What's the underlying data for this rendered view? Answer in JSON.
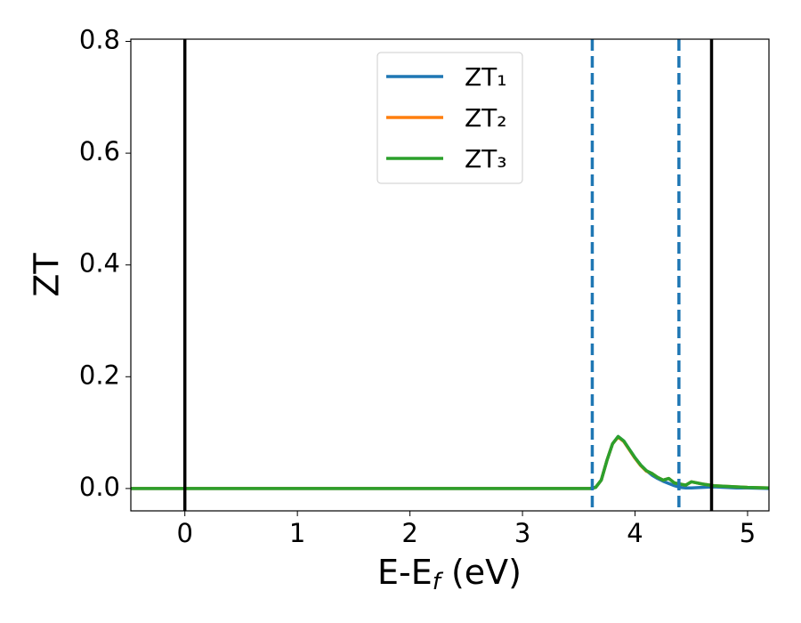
{
  "chart_data": {
    "type": "line",
    "xlabel": [
      "E-E",
      "f",
      " (eV)"
    ],
    "ylabel": "ZT",
    "x": [
      -0.5,
      0,
      0.5,
      1,
      1.5,
      2,
      2.5,
      3,
      3.5,
      3.6,
      3.65,
      3.7,
      3.75,
      3.8,
      3.85,
      3.9,
      3.95,
      4.0,
      4.05,
      4.1,
      4.15,
      4.2,
      4.25,
      4.3,
      4.35,
      4.4,
      4.45,
      4.5,
      4.6,
      4.7,
      4.8,
      4.9,
      5.0,
      5.2
    ],
    "series": [
      {
        "name": "ZT₁",
        "color": "#1f77b4",
        "values": [
          0,
          0,
          0,
          0,
          0,
          0,
          0,
          0,
          0,
          0,
          0.002,
          0.015,
          0.05,
          0.08,
          0.093,
          0.085,
          0.07,
          0.055,
          0.042,
          0.032,
          0.024,
          0.018,
          0.013,
          0.009,
          0.005,
          0.002,
          0.001,
          0.001,
          0.002,
          0.003,
          0.002,
          0.001,
          0.001,
          0
        ]
      },
      {
        "name": "ZT₂",
        "color": "#ff7f0e",
        "values": [
          0,
          0,
          0,
          0,
          0,
          0,
          0,
          0,
          0,
          0,
          0.002,
          0.015,
          0.05,
          0.08,
          0.092,
          0.084,
          0.069,
          0.054,
          0.041,
          0.031,
          0.027,
          0.02,
          0.015,
          0.018,
          0.01,
          0.008,
          0.006,
          0.012,
          0.008,
          0.005,
          0.004,
          0.003,
          0.002,
          0.001
        ]
      },
      {
        "name": "ZT₃",
        "color": "#2ca02c",
        "values": [
          0,
          0,
          0,
          0,
          0,
          0,
          0,
          0,
          0,
          0,
          0.002,
          0.015,
          0.05,
          0.08,
          0.093,
          0.085,
          0.07,
          0.055,
          0.042,
          0.032,
          0.027,
          0.02,
          0.015,
          0.018,
          0.01,
          0.008,
          0.006,
          0.012,
          0.008,
          0.005,
          0.004,
          0.003,
          0.002,
          0.001
        ]
      }
    ],
    "vlines": [
      {
        "x": 0,
        "color": "#000000",
        "style": "solid"
      },
      {
        "x": 4.68,
        "color": "#000000",
        "style": "solid"
      },
      {
        "x": 3.62,
        "color": "#1f77b4",
        "style": "dashed"
      },
      {
        "x": 4.39,
        "color": "#1f77b4",
        "style": "dashed"
      }
    ],
    "xlim": [
      -0.48,
      5.19
    ],
    "ylim": [
      -0.04,
      0.804
    ],
    "xticks": [
      0,
      1,
      2,
      3,
      4,
      5
    ],
    "yticks": [
      {
        "value": 0,
        "label": "0.0"
      },
      0.2,
      0.4,
      0.6,
      0.8
    ],
    "legend": "upper center"
  }
}
